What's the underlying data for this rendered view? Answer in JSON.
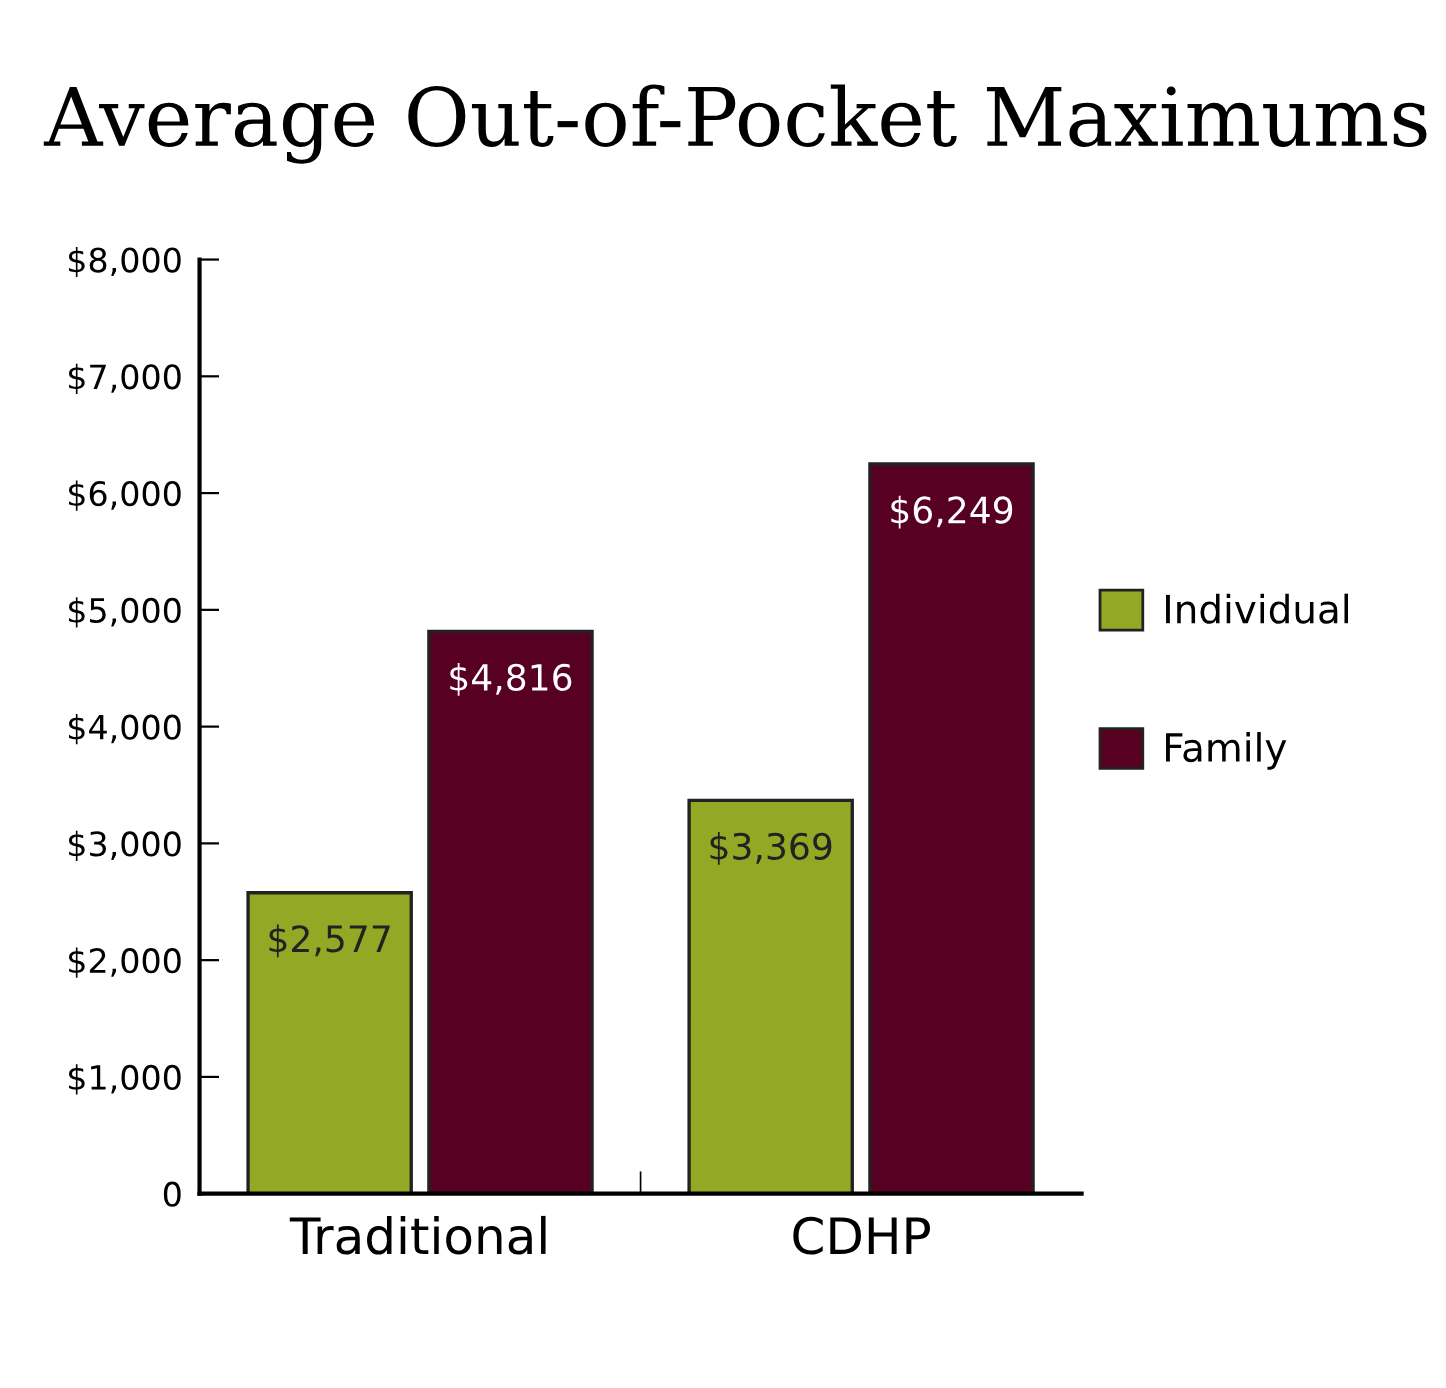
{
  "chart_data": {
    "type": "bar",
    "title": "Average Out-of-Pocket Maximums",
    "categories": [
      "Traditional",
      "CDHP"
    ],
    "series": [
      {
        "name": "Individual",
        "color": "#93a824",
        "values": [
          2577,
          3369
        ],
        "value_labels": [
          "$2,577",
          "$3,369"
        ]
      },
      {
        "name": "Family",
        "color": "#570022",
        "values": [
          4816,
          6249
        ],
        "value_labels": [
          "$4,816",
          "$6,249"
        ]
      }
    ],
    "ylim": [
      0,
      8000
    ],
    "yticks": [
      {
        "value": 0,
        "label": "0"
      },
      {
        "value": 1000,
        "label": "$1,000"
      },
      {
        "value": 2000,
        "label": "$2,000"
      },
      {
        "value": 3000,
        "label": "$3,000"
      },
      {
        "value": 4000,
        "label": "$4,000"
      },
      {
        "value": 5000,
        "label": "$5,000"
      },
      {
        "value": 6000,
        "label": "$6,000"
      },
      {
        "value": 7000,
        "label": "$7,000"
      },
      {
        "value": 8000,
        "label": "$8,000"
      }
    ],
    "grid": false,
    "legend": "right"
  }
}
